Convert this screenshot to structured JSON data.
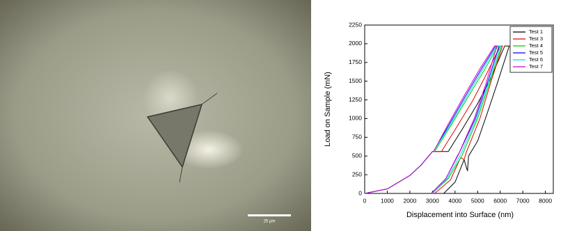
{
  "micrograph": {
    "scale_bar_label": "25 µm"
  },
  "chart_data": {
    "type": "line",
    "x_label": "Displacement into Surface (nm)",
    "y_label": "Load on Sample (mN)",
    "xlim": [
      0,
      8350
    ],
    "xticks": [
      0,
      1000,
      2000,
      3000,
      4000,
      5000,
      6000,
      7000,
      8000
    ],
    "ylim": [
      0,
      2250
    ],
    "yticks": [
      0,
      250,
      500,
      750,
      1000,
      1250,
      1500,
      1750,
      2000,
      2250
    ],
    "legend": "upper right",
    "series": [
      {
        "name": "Test 1",
        "color": "#000000",
        "x": [
          0,
          1000,
          2000,
          2500,
          3000,
          3700,
          4300,
          5000,
          5600,
          6200,
          6400,
          5900,
          5400,
          5000,
          4600,
          4550,
          4400,
          4000,
          3500
        ],
        "values": [
          0,
          60,
          240,
          380,
          560,
          560,
          850,
          1200,
          1550,
          1970,
          1970,
          1500,
          1050,
          700,
          500,
          300,
          450,
          150,
          0
        ]
      },
      {
        "name": "Test 3",
        "color": "#e00000",
        "x": [
          0,
          1000,
          2000,
          2500,
          3000,
          3400,
          4000,
          4800,
          5400,
          6000,
          6100,
          5600,
          5100,
          4500,
          4400,
          4250,
          3800,
          3100
        ],
        "values": [
          0,
          60,
          240,
          380,
          560,
          560,
          850,
          1250,
          1600,
          1970,
          1970,
          1500,
          1000,
          550,
          450,
          480,
          180,
          0
        ]
      },
      {
        "name": "Test 4",
        "color": "#00cc00",
        "x": [
          0,
          1000,
          2000,
          2500,
          3000,
          3100,
          3800,
          4600,
          5300,
          5900,
          6050,
          5500,
          5000,
          4300,
          3700,
          3000
        ],
        "values": [
          0,
          60,
          240,
          380,
          560,
          560,
          900,
          1300,
          1650,
          1970,
          1970,
          1450,
          1000,
          500,
          200,
          0
        ]
      },
      {
        "name": "Test 5",
        "color": "#0000ff",
        "x": [
          0,
          1000,
          2000,
          2500,
          3000,
          3050,
          3700,
          4500,
          5200,
          5800,
          5950,
          5400,
          4900,
          4200,
          4100,
          3600,
          2950
        ],
        "values": [
          0,
          60,
          240,
          380,
          560,
          560,
          900,
          1320,
          1680,
          1970,
          1970,
          1450,
          1000,
          550,
          500,
          200,
          0
        ]
      },
      {
        "name": "Test 6",
        "color": "#00dddd",
        "x": [
          0,
          1000,
          2000,
          2500,
          3000,
          3050,
          3750,
          4550,
          5250,
          5850,
          6000,
          5450,
          4950,
          4250,
          3650,
          3000
        ],
        "values": [
          0,
          60,
          240,
          380,
          560,
          560,
          900,
          1310,
          1670,
          1970,
          1970,
          1450,
          1000,
          520,
          200,
          0
        ]
      },
      {
        "name": "Test 7",
        "color": "#cc00cc",
        "x": [
          0,
          1000,
          2000,
          2500,
          3000,
          3050,
          3650,
          4450,
          5150,
          5750,
          5850,
          5350,
          4850,
          4150,
          3600,
          2950
        ],
        "values": [
          0,
          60,
          240,
          380,
          560,
          560,
          900,
          1330,
          1690,
          1970,
          1970,
          1450,
          1000,
          520,
          200,
          0
        ]
      }
    ]
  }
}
